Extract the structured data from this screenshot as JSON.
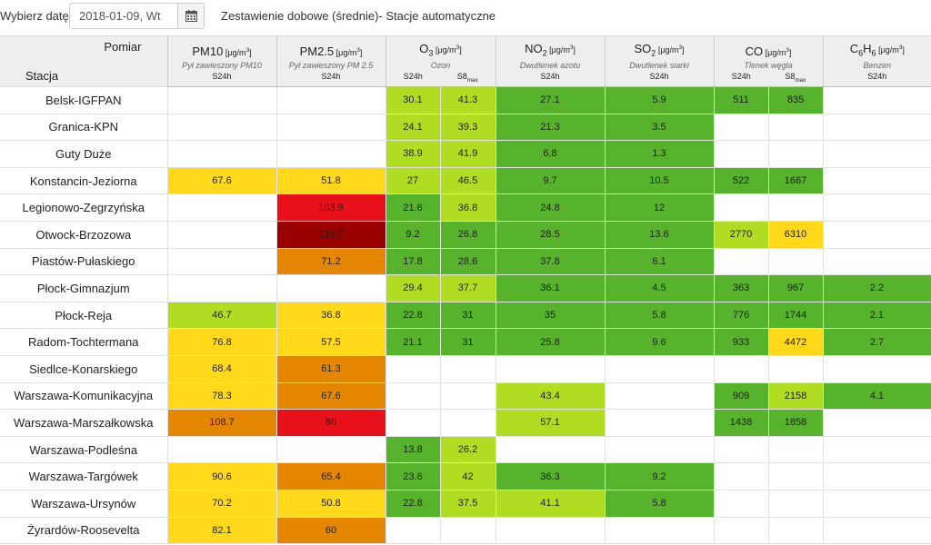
{
  "toolbar": {
    "date_label": "Wybierz datę:",
    "date_value": "2018-01-09, Wt",
    "calendar_icon": "calendar-icon",
    "title": "Zestawienie dobowe (średnie)- Stacje automatyczne"
  },
  "header": {
    "pomiar": "Pomiar",
    "stacja": "Stacja",
    "unit": "[μg/m",
    "unit_sup": "3",
    "unit_close": "]",
    "pollutants": [
      {
        "name": "PM10",
        "sub": "",
        "name_rest": "",
        "desc": "Pył zawieszony PM10",
        "subcols": [
          "S24h"
        ]
      },
      {
        "name": "PM2.5",
        "sub": "",
        "name_rest": "",
        "desc": "Pył zawieszony PM 2.5",
        "subcols": [
          "S24h"
        ]
      },
      {
        "name": "O",
        "sub": "3",
        "name_rest": "",
        "desc": "Ozon",
        "subcols": [
          "S24h",
          "S8max"
        ]
      },
      {
        "name": "NO",
        "sub": "2",
        "name_rest": "",
        "desc": "Dwutlenek azotu",
        "subcols": [
          "S24h"
        ]
      },
      {
        "name": "SO",
        "sub": "2",
        "name_rest": "",
        "desc": "Dwutlenek siarki",
        "subcols": [
          "S24h"
        ]
      },
      {
        "name": "CO",
        "sub": "",
        "name_rest": "",
        "desc": "Tlenek węgla",
        "subcols": [
          "S24h",
          "S8max"
        ]
      },
      {
        "name": "C",
        "sub": "6",
        "name_rest": "H",
        "sub2": "6",
        "desc": "Benzen",
        "subcols": [
          "S24h"
        ]
      }
    ]
  },
  "legend_colors": {
    "very_good": "#57b22c",
    "good": "#b0dd22",
    "moderate": "#ffd91a",
    "sufficient": "#e58600",
    "bad": "#e8111a",
    "very_bad": "#990100"
  },
  "rows": [
    {
      "station": "Belsk-IGFPAN",
      "cells": [
        [
          "",
          ""
        ],
        [
          "",
          ""
        ],
        [
          "30.1",
          "g"
        ],
        [
          "41.3",
          "g"
        ],
        [
          "27.1",
          "vg"
        ],
        [
          "5.9",
          "vg"
        ],
        [
          "511",
          "vg"
        ],
        [
          "835",
          "vg"
        ],
        [
          "",
          ""
        ]
      ]
    },
    {
      "station": "Granica-KPN",
      "cells": [
        [
          "",
          ""
        ],
        [
          "",
          ""
        ],
        [
          "24.1",
          "g"
        ],
        [
          "39.3",
          "g"
        ],
        [
          "21.3",
          "vg"
        ],
        [
          "3.5",
          "vg"
        ],
        [
          "",
          ""
        ],
        [
          "",
          ""
        ],
        [
          "",
          ""
        ]
      ]
    },
    {
      "station": "Guty Duże",
      "cells": [
        [
          "",
          ""
        ],
        [
          "",
          ""
        ],
        [
          "38.9",
          "g"
        ],
        [
          "41.9",
          "g"
        ],
        [
          "6.8",
          "vg"
        ],
        [
          "1.3",
          "vg"
        ],
        [
          "",
          ""
        ],
        [
          "",
          ""
        ],
        [
          "",
          ""
        ]
      ]
    },
    {
      "station": "Konstancin-Jeziorna",
      "cells": [
        [
          "67.6",
          "m"
        ],
        [
          "51.8",
          "m"
        ],
        [
          "27",
          "g"
        ],
        [
          "46.5",
          "g"
        ],
        [
          "9.7",
          "vg"
        ],
        [
          "10.5",
          "vg"
        ],
        [
          "522",
          "vg"
        ],
        [
          "1667",
          "vg"
        ],
        [
          "",
          ""
        ]
      ]
    },
    {
      "station": "Legionowo-Zegrzyńska",
      "cells": [
        [
          "",
          ""
        ],
        [
          "103.9",
          "b"
        ],
        [
          "21.6",
          "vg"
        ],
        [
          "36.8",
          "g"
        ],
        [
          "24.8",
          "vg"
        ],
        [
          "12",
          "vg"
        ],
        [
          "",
          ""
        ],
        [
          "",
          ""
        ],
        [
          "",
          ""
        ]
      ]
    },
    {
      "station": "Otwock-Brzozowa",
      "cells": [
        [
          "",
          ""
        ],
        [
          "136.7",
          "vb"
        ],
        [
          "9.2",
          "vg"
        ],
        [
          "26.8",
          "vg"
        ],
        [
          "28.5",
          "vg"
        ],
        [
          "13.6",
          "vg"
        ],
        [
          "2770",
          "g"
        ],
        [
          "6310",
          "m"
        ],
        [
          "",
          ""
        ]
      ]
    },
    {
      "station": "Piastów-Pułaskiego",
      "cells": [
        [
          "",
          ""
        ],
        [
          "71.2",
          "s"
        ],
        [
          "17.8",
          "vg"
        ],
        [
          "28.6",
          "vg"
        ],
        [
          "37.8",
          "vg"
        ],
        [
          "6.1",
          "vg"
        ],
        [
          "",
          ""
        ],
        [
          "",
          ""
        ],
        [
          "",
          ""
        ]
      ]
    },
    {
      "station": "Płock-Gimnazjum",
      "cells": [
        [
          "",
          ""
        ],
        [
          "",
          ""
        ],
        [
          "29.4",
          "g"
        ],
        [
          "37.7",
          "g"
        ],
        [
          "36.1",
          "vg"
        ],
        [
          "4.5",
          "vg"
        ],
        [
          "363",
          "vg"
        ],
        [
          "967",
          "vg"
        ],
        [
          "2.2",
          "vg"
        ]
      ]
    },
    {
      "station": "Płock-Reja",
      "cells": [
        [
          "46.7",
          "g"
        ],
        [
          "36.8",
          "m"
        ],
        [
          "22.8",
          "vg"
        ],
        [
          "31",
          "vg"
        ],
        [
          "35",
          "vg"
        ],
        [
          "5.8",
          "vg"
        ],
        [
          "776",
          "vg"
        ],
        [
          "1744",
          "vg"
        ],
        [
          "2.1",
          "vg"
        ]
      ]
    },
    {
      "station": "Radom-Tochtermana",
      "cells": [
        [
          "76.8",
          "m"
        ],
        [
          "57.5",
          "m"
        ],
        [
          "21.1",
          "vg"
        ],
        [
          "31",
          "vg"
        ],
        [
          "25.8",
          "vg"
        ],
        [
          "9.6",
          "vg"
        ],
        [
          "933",
          "vg"
        ],
        [
          "4472",
          "m"
        ],
        [
          "2.7",
          "vg"
        ]
      ]
    },
    {
      "station": "Siedlce-Konarskiego",
      "cells": [
        [
          "68.4",
          "m"
        ],
        [
          "61.3",
          "s"
        ],
        [
          "",
          ""
        ],
        [
          "",
          ""
        ],
        [
          "",
          ""
        ],
        [
          "",
          ""
        ],
        [
          "",
          ""
        ],
        [
          "",
          ""
        ],
        [
          "",
          ""
        ]
      ]
    },
    {
      "station": "Warszawa-Komunikacyjna",
      "cells": [
        [
          "78.3",
          "m"
        ],
        [
          "67.6",
          "s"
        ],
        [
          "",
          ""
        ],
        [
          "",
          ""
        ],
        [
          "43.4",
          "g"
        ],
        [
          "",
          ""
        ],
        [
          "909",
          "vg"
        ],
        [
          "2158",
          "g"
        ],
        [
          "4.1",
          "vg"
        ]
      ]
    },
    {
      "station": "Warszawa-Marszałkowska",
      "cells": [
        [
          "108.7",
          "s"
        ],
        [
          "86",
          "b"
        ],
        [
          "",
          ""
        ],
        [
          "",
          ""
        ],
        [
          "57.1",
          "g"
        ],
        [
          "",
          ""
        ],
        [
          "1438",
          "vg"
        ],
        [
          "1858",
          "vg"
        ],
        [
          "",
          ""
        ]
      ]
    },
    {
      "station": "Warszawa-Podleśna",
      "cells": [
        [
          "",
          ""
        ],
        [
          "",
          ""
        ],
        [
          "13.8",
          "vg"
        ],
        [
          "26.2",
          "g"
        ],
        [
          "",
          ""
        ],
        [
          "",
          ""
        ],
        [
          "",
          ""
        ],
        [
          "",
          ""
        ],
        [
          "",
          ""
        ]
      ]
    },
    {
      "station": "Warszawa-Targówek",
      "cells": [
        [
          "90.6",
          "m"
        ],
        [
          "65.4",
          "s"
        ],
        [
          "23.6",
          "vg"
        ],
        [
          "42",
          "g"
        ],
        [
          "36.3",
          "vg"
        ],
        [
          "9.2",
          "vg"
        ],
        [
          "",
          ""
        ],
        [
          "",
          ""
        ],
        [
          "",
          ""
        ]
      ]
    },
    {
      "station": "Warszawa-Ursynów",
      "cells": [
        [
          "70.2",
          "m"
        ],
        [
          "50.8",
          "m"
        ],
        [
          "22.8",
          "vg"
        ],
        [
          "37.5",
          "g"
        ],
        [
          "41.1",
          "g"
        ],
        [
          "5.8",
          "vg"
        ],
        [
          "",
          ""
        ],
        [
          "",
          ""
        ],
        [
          "",
          ""
        ]
      ]
    },
    {
      "station": "Żyrardów-Roosevelta",
      "cells": [
        [
          "82.1",
          "m"
        ],
        [
          "60",
          "s"
        ],
        [
          "",
          ""
        ],
        [
          "",
          ""
        ],
        [
          "",
          ""
        ],
        [
          "",
          ""
        ],
        [
          "",
          ""
        ],
        [
          "",
          ""
        ],
        [
          "",
          ""
        ]
      ]
    }
  ]
}
